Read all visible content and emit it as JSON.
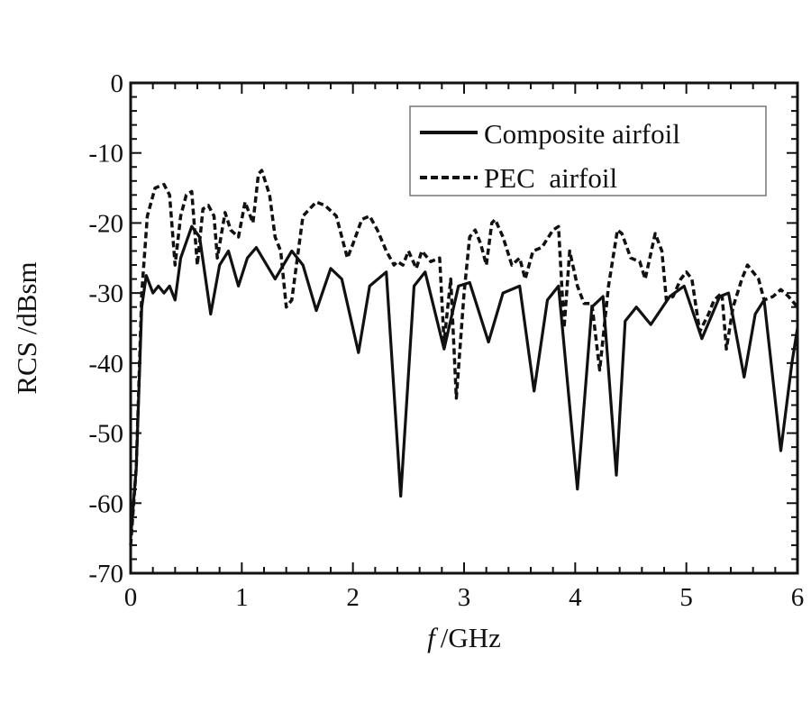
{
  "chart_data": {
    "type": "line",
    "title": "",
    "xlabel_italic": "f",
    "xlabel_rest": "/GHz",
    "xlabel": "f /GHz",
    "ylabel": "RCS /dBsm",
    "xlim": [
      0,
      6
    ],
    "ylim": [
      -70,
      0
    ],
    "x_ticks": [
      0,
      1,
      2,
      3,
      4,
      5,
      6
    ],
    "x_tick_labels": [
      "0",
      "1",
      "2",
      "3",
      "4",
      "5",
      "6"
    ],
    "x_minor_step": 0.2,
    "y_ticks": [
      0,
      -10,
      -20,
      -30,
      -40,
      -50,
      -60,
      -70
    ],
    "y_tick_labels": [
      "0",
      "-10",
      "-20",
      "-30",
      "-40",
      "-50",
      "-60",
      "-70"
    ],
    "y_minor_step": 2,
    "grid": false,
    "legend_position": "upper right",
    "series": [
      {
        "name": "Composite airfoil",
        "style": "solid",
        "color": "#111111",
        "x": [
          0.0,
          0.05,
          0.1,
          0.14,
          0.2,
          0.25,
          0.3,
          0.35,
          0.4,
          0.45,
          0.55,
          0.62,
          0.72,
          0.8,
          0.88,
          0.97,
          1.05,
          1.13,
          1.3,
          1.45,
          1.55,
          1.67,
          1.8,
          1.9,
          2.05,
          2.15,
          2.3,
          2.43,
          2.55,
          2.65,
          2.82,
          2.95,
          3.05,
          3.22,
          3.35,
          3.5,
          3.63,
          3.75,
          3.85,
          4.02,
          4.15,
          4.25,
          4.37,
          4.45,
          4.55,
          4.68,
          4.85,
          4.98,
          5.14,
          5.3,
          5.38,
          5.52,
          5.62,
          5.7,
          5.85,
          5.95,
          6.0
        ],
        "y": [
          -65,
          -55,
          -32,
          -27.5,
          -30,
          -29,
          -30,
          -29,
          -31,
          -25,
          -20.5,
          -22,
          -33,
          -26,
          -24,
          -29,
          -25,
          -23.5,
          -28,
          -24,
          -26,
          -32.5,
          -26.5,
          -28,
          -38.5,
          -29,
          -27,
          -59,
          -29,
          -27,
          -38,
          -29,
          -28.5,
          -37,
          -30,
          -29,
          -44,
          -31,
          -29,
          -58,
          -32,
          -30.5,
          -56,
          -34,
          -32,
          -34.5,
          -30.5,
          -29,
          -36.5,
          -30.5,
          -30,
          -42,
          -33,
          -31,
          -52.5,
          -40,
          -35
        ]
      },
      {
        "name": "PEC  airfoil",
        "style": "dashed",
        "color": "#111111",
        "x": [
          0.0,
          0.05,
          0.1,
          0.15,
          0.22,
          0.3,
          0.35,
          0.4,
          0.45,
          0.5,
          0.55,
          0.6,
          0.65,
          0.7,
          0.75,
          0.78,
          0.85,
          0.9,
          0.97,
          1.03,
          1.1,
          1.15,
          1.18,
          1.25,
          1.3,
          1.35,
          1.4,
          1.45,
          1.55,
          1.67,
          1.75,
          1.85,
          1.95,
          2.0,
          2.08,
          2.15,
          2.22,
          2.3,
          2.37,
          2.4,
          2.45,
          2.5,
          2.57,
          2.62,
          2.7,
          2.78,
          2.82,
          2.88,
          2.93,
          3.0,
          3.05,
          3.1,
          3.15,
          3.2,
          3.25,
          3.28,
          3.35,
          3.43,
          3.5,
          3.55,
          3.62,
          3.7,
          3.8,
          3.85,
          3.9,
          3.95,
          4.02,
          4.08,
          4.15,
          4.22,
          4.3,
          4.38,
          4.42,
          4.5,
          4.58,
          4.63,
          4.72,
          4.78,
          4.82,
          4.88,
          4.95,
          5.0,
          5.05,
          5.12,
          5.2,
          5.25,
          5.32,
          5.36,
          5.42,
          5.5,
          5.55,
          5.65,
          5.7,
          5.78,
          5.85,
          5.92,
          6.0
        ],
        "y": [
          -66,
          -55,
          -30,
          -19,
          -15,
          -14.5,
          -16,
          -26,
          -19,
          -16,
          -15.5,
          -26,
          -18,
          -17.5,
          -19,
          -25,
          -18.5,
          -21,
          -22,
          -17,
          -20,
          -13,
          -12.5,
          -16,
          -22,
          -24,
          -32,
          -31,
          -19,
          -17,
          -17.5,
          -19,
          -25,
          -23,
          -19.5,
          -19,
          -21,
          -24,
          -26,
          -25.5,
          -26,
          -24,
          -26.5,
          -24,
          -25.5,
          -25,
          -37,
          -28,
          -45,
          -30,
          -22,
          -21,
          -23,
          -26,
          -20,
          -19.5,
          -22,
          -26,
          -25,
          -28,
          -24,
          -23.5,
          -21,
          -20.5,
          -35,
          -24,
          -29,
          -31.5,
          -31.5,
          -41,
          -29,
          -21,
          -21.5,
          -25,
          -25.5,
          -28,
          -21.5,
          -24,
          -31,
          -30.5,
          -28,
          -27,
          -28,
          -35.5,
          -33,
          -31,
          -30,
          -38,
          -32,
          -28,
          -26,
          -28,
          -31,
          -30.5,
          -29.5,
          -30.5,
          -32
        ]
      }
    ]
  },
  "legend": {
    "items": [
      {
        "label": "Composite airfoil",
        "style": "solid"
      },
      {
        "label": "PEC  airfoil",
        "style": "dashed"
      }
    ]
  }
}
